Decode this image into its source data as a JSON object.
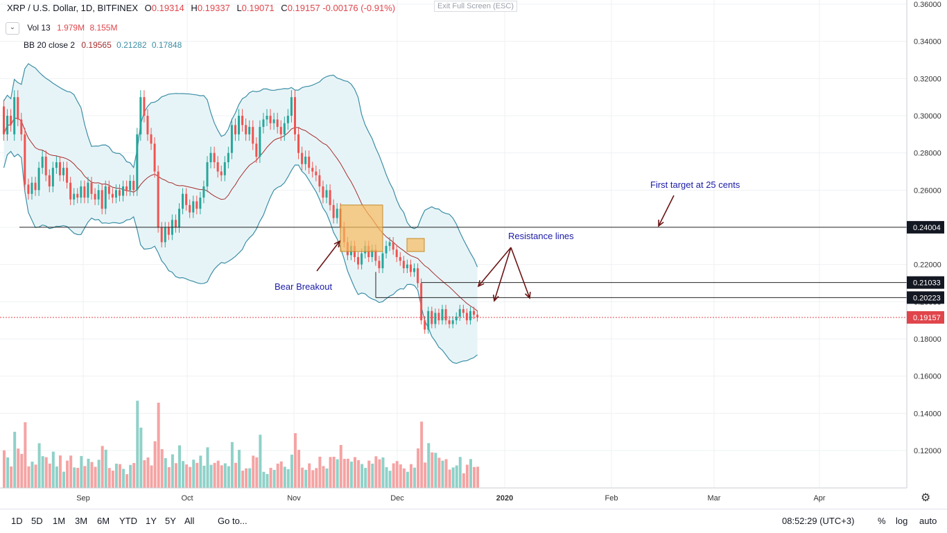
{
  "header": {
    "symbol": "XRP / U.S. Dollar, 1D, BITFINEX",
    "open_label": "O",
    "open": "0.19314",
    "high_label": "H",
    "high": "0.19337",
    "low_label": "L",
    "low": "0.19071",
    "close_label": "C",
    "close": "0.19157",
    "change": "-0.00176 (-0.91%)",
    "exit_fullscreen": "Exit Full Screen (ESC)",
    "collapse_icon": "chevron-down-icon"
  },
  "indicators": {
    "vol_label": "Vol 13",
    "vol_v1": "1.979M",
    "vol_v2": "8.155M",
    "bb_label": "BB 20 close 2",
    "bb_mid": "0.19565",
    "bb_upper": "0.21282",
    "bb_lower": "0.17848"
  },
  "toolbar": {
    "ranges": [
      "1D",
      "5D",
      "1M",
      "3M",
      "6M",
      "YTD",
      "1Y",
      "5Y",
      "All"
    ],
    "goto": "Go to...",
    "time": "08:52:29 (UTC+3)",
    "percent": "%",
    "log": "log",
    "auto": "auto",
    "settings_icon": "gear-icon"
  },
  "colors": {
    "up": "#26a69a",
    "down": "#ef5350",
    "vol_up": "#8fd1c8",
    "vol_down": "#f5a3a3",
    "bb_band": "#3b8ea5",
    "bb_fill": "#e7f4f7",
    "bb_mid": "#a52d2d",
    "annotation_text": "#1a1aa8",
    "arrow": "#6b1414",
    "box_fill": "#f8b95b",
    "price_line": "#e0454b"
  },
  "chart_data": {
    "type": "candlestick",
    "ylim": [
      0.1,
      0.36
    ],
    "y_scale": "log",
    "y_ticks": [
      "0.36000",
      "0.34000",
      "0.32000",
      "0.30000",
      "0.28000",
      "0.26000",
      "0.24000",
      "0.22000",
      "0.20000",
      "0.18000",
      "0.16000",
      "0.14000",
      "0.12000"
    ],
    "x_labels": [
      "Sep",
      "Oct",
      "Nov",
      "Dec",
      "2020",
      "Feb",
      "Mar",
      "Apr"
    ],
    "grid": true,
    "levels": [
      {
        "value": 0.24004,
        "label": "0.24004",
        "style": "solid"
      },
      {
        "value": 0.21033,
        "label": "0.21033",
        "style": "solid"
      },
      {
        "value": 0.20223,
        "label": "0.20223",
        "style": "solid"
      },
      {
        "value": 0.19157,
        "label": "0.19157",
        "style": "dotted",
        "current": true
      }
    ],
    "annotations": [
      {
        "text": "First target at 25 cents"
      },
      {
        "text": "Resistance lines"
      },
      {
        "text": "Bear Breakout"
      }
    ],
    "series": [
      {
        "name": "Price",
        "points": [
          [
            0.305,
            0.29
          ],
          [
            0.29,
            0.3
          ],
          [
            0.3,
            0.295
          ],
          [
            0.29,
            0.31
          ],
          [
            0.31,
            0.298
          ],
          [
            0.298,
            0.29
          ],
          [
            0.29,
            0.263
          ],
          [
            0.263,
            0.258
          ],
          [
            0.258,
            0.264
          ],
          [
            0.264,
            0.26
          ],
          [
            0.26,
            0.272
          ],
          [
            0.272,
            0.278
          ],
          [
            0.278,
            0.268
          ],
          [
            0.268,
            0.262
          ],
          [
            0.262,
            0.272
          ],
          [
            0.272,
            0.275
          ],
          [
            0.275,
            0.268
          ],
          [
            0.268,
            0.272
          ],
          [
            0.272,
            0.264
          ],
          [
            0.264,
            0.255
          ],
          [
            0.255,
            0.258
          ],
          [
            0.258,
            0.256
          ],
          [
            0.256,
            0.262
          ],
          [
            0.262,
            0.256
          ],
          [
            0.256,
            0.264
          ],
          [
            0.264,
            0.258
          ],
          [
            0.258,
            0.255
          ],
          [
            0.255,
            0.26
          ],
          [
            0.26,
            0.25
          ],
          [
            0.25,
            0.262
          ],
          [
            0.262,
            0.258
          ],
          [
            0.258,
            0.256
          ],
          [
            0.256,
            0.26
          ],
          [
            0.26,
            0.257
          ],
          [
            0.257,
            0.262
          ],
          [
            0.262,
            0.26
          ],
          [
            0.26,
            0.265
          ],
          [
            0.265,
            0.26
          ],
          [
            0.26,
            0.29
          ],
          [
            0.29,
            0.31
          ],
          [
            0.31,
            0.3
          ],
          [
            0.3,
            0.29
          ],
          [
            0.29,
            0.285
          ],
          [
            0.285,
            0.27
          ],
          [
            0.27,
            0.24
          ],
          [
            0.24,
            0.232
          ],
          [
            0.232,
            0.24
          ],
          [
            0.24,
            0.236
          ],
          [
            0.236,
            0.244
          ],
          [
            0.244,
            0.24
          ],
          [
            0.24,
            0.25
          ],
          [
            0.25,
            0.258
          ],
          [
            0.258,
            0.252
          ],
          [
            0.252,
            0.248
          ],
          [
            0.248,
            0.254
          ],
          [
            0.254,
            0.25
          ],
          [
            0.25,
            0.256
          ],
          [
            0.256,
            0.262
          ],
          [
            0.262,
            0.275
          ],
          [
            0.275,
            0.28
          ],
          [
            0.28,
            0.275
          ],
          [
            0.275,
            0.27
          ],
          [
            0.27,
            0.268
          ],
          [
            0.268,
            0.275
          ],
          [
            0.275,
            0.28
          ],
          [
            0.28,
            0.295
          ],
          [
            0.295,
            0.29
          ],
          [
            0.29,
            0.3
          ],
          [
            0.3,
            0.295
          ],
          [
            0.295,
            0.29
          ],
          [
            0.29,
            0.294
          ],
          [
            0.294,
            0.285
          ],
          [
            0.285,
            0.278
          ],
          [
            0.278,
            0.294
          ],
          [
            0.294,
            0.298
          ],
          [
            0.298,
            0.3
          ],
          [
            0.3,
            0.296
          ],
          [
            0.296,
            0.298
          ],
          [
            0.298,
            0.294
          ],
          [
            0.294,
            0.29
          ],
          [
            0.29,
            0.296
          ],
          [
            0.296,
            0.3
          ],
          [
            0.3,
            0.31
          ],
          [
            0.31,
            0.29
          ],
          [
            0.29,
            0.28
          ],
          [
            0.28,
            0.274
          ],
          [
            0.274,
            0.278
          ],
          [
            0.278,
            0.272
          ],
          [
            0.272,
            0.27
          ],
          [
            0.27,
            0.268
          ],
          [
            0.268,
            0.262
          ],
          [
            0.262,
            0.256
          ],
          [
            0.256,
            0.26
          ],
          [
            0.26,
            0.252
          ],
          [
            0.252,
            0.245
          ],
          [
            0.245,
            0.25
          ],
          [
            0.25,
            0.24
          ],
          [
            0.24,
            0.232
          ],
          [
            0.232,
            0.225
          ],
          [
            0.225,
            0.23
          ],
          [
            0.23,
            0.224
          ],
          [
            0.224,
            0.22
          ],
          [
            0.22,
            0.226
          ],
          [
            0.226,
            0.23
          ],
          [
            0.23,
            0.224
          ],
          [
            0.224,
            0.228
          ],
          [
            0.228,
            0.222
          ],
          [
            0.222,
            0.218
          ],
          [
            0.218,
            0.226
          ],
          [
            0.226,
            0.23
          ],
          [
            0.23,
            0.232
          ],
          [
            0.232,
            0.228
          ],
          [
            0.228,
            0.224
          ],
          [
            0.224,
            0.222
          ],
          [
            0.222,
            0.218
          ],
          [
            0.218,
            0.22
          ],
          [
            0.22,
            0.216
          ],
          [
            0.216,
            0.218
          ],
          [
            0.218,
            0.21
          ],
          [
            0.21,
            0.19
          ],
          [
            0.19,
            0.185
          ],
          [
            0.185,
            0.195
          ],
          [
            0.195,
            0.188
          ],
          [
            0.188,
            0.194
          ],
          [
            0.194,
            0.19
          ],
          [
            0.19,
            0.196
          ],
          [
            0.196,
            0.19
          ],
          [
            0.19,
            0.188
          ],
          [
            0.188,
            0.19
          ],
          [
            0.19,
            0.192
          ],
          [
            0.192,
            0.196
          ],
          [
            0.196,
            0.194
          ],
          [
            0.194,
            0.19
          ],
          [
            0.19,
            0.195
          ],
          [
            0.195,
            0.193
          ],
          [
            0.193,
            0.19157
          ]
        ]
      }
    ]
  }
}
